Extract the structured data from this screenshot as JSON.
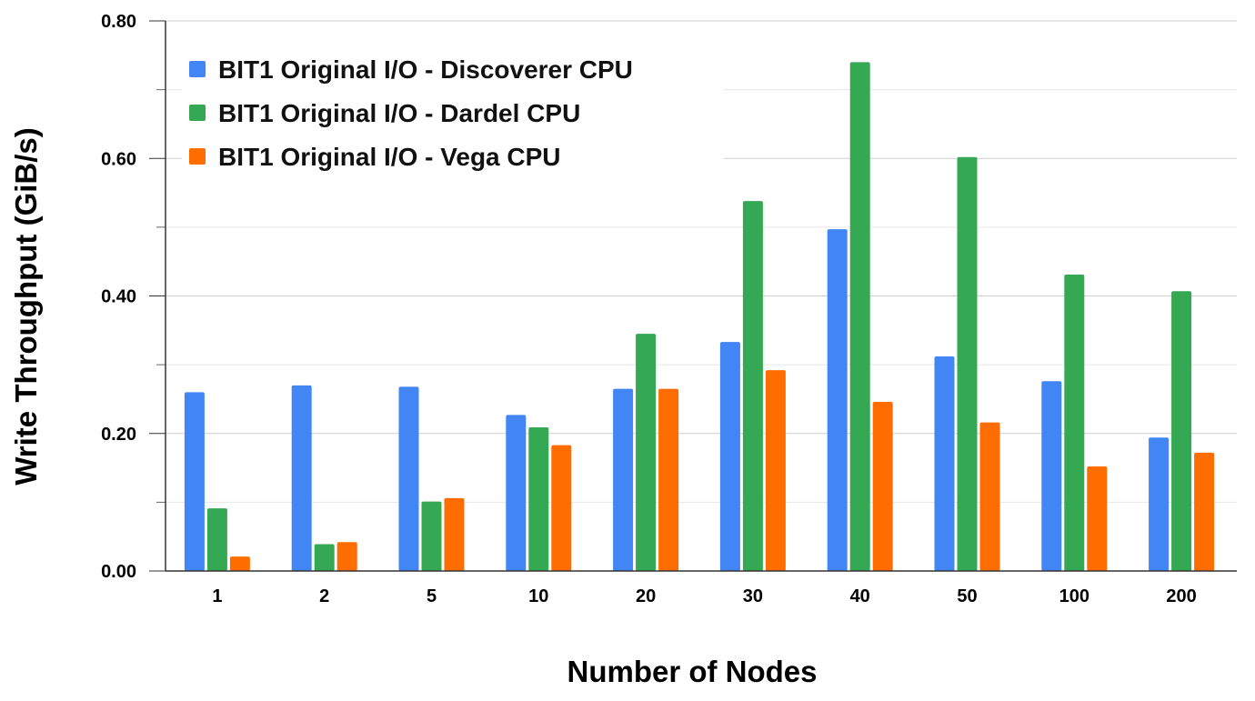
{
  "chart_data": {
    "type": "bar",
    "title": "",
    "xlabel": "Number of Nodes",
    "ylabel": "Write Throughput (GiB/s)",
    "ylim": [
      0,
      0.8
    ],
    "yticks": [
      "0.00",
      "0.20",
      "0.40",
      "0.60",
      "0.80"
    ],
    "grid": true,
    "legend_position": "top-left",
    "categories": [
      "1",
      "2",
      "5",
      "10",
      "20",
      "30",
      "40",
      "50",
      "100",
      "200"
    ],
    "series": [
      {
        "name": "BIT1 Original I/O - Discoverer CPU",
        "color": "#4285f4",
        "values": [
          0.26,
          0.27,
          0.268,
          0.227,
          0.265,
          0.333,
          0.497,
          0.312,
          0.276,
          0.194
        ]
      },
      {
        "name": "BIT1 Original I/O - Dardel CPU",
        "color": "#34a853",
        "values": [
          0.091,
          0.039,
          0.101,
          0.209,
          0.345,
          0.538,
          0.74,
          0.602,
          0.431,
          0.407
        ]
      },
      {
        "name": "BIT1 Original I/O - Vega CPU",
        "color": "#ff6d01",
        "values": [
          0.021,
          0.042,
          0.106,
          0.183,
          0.265,
          0.292,
          0.246,
          0.216,
          0.152,
          0.172
        ]
      }
    ]
  }
}
